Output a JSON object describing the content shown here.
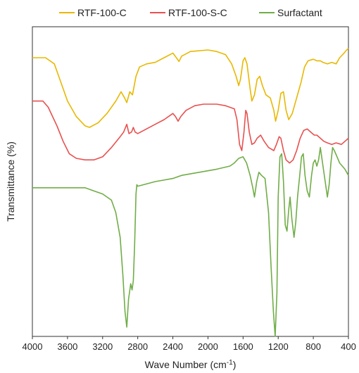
{
  "chart_data": {
    "type": "line",
    "title": "",
    "xlabel": "Wave Number (cm",
    "xlabel_superscript": "-1",
    "xlabel_suffix": ")",
    "ylabel": "Transmittance (%)",
    "xlim": [
      4000,
      400
    ],
    "x_reversed": true,
    "x_ticks": [
      "4000",
      "3600",
      "3200",
      "2800",
      "2400",
      "2000",
      "1600",
      "1200",
      "800",
      "400"
    ],
    "y_ticks": [],
    "grid": false,
    "legend_position": "top",
    "series": [
      {
        "name": "RTF-100-C",
        "color": "#e8b800",
        "points": [
          [
            4000,
            90
          ],
          [
            3850,
            90
          ],
          [
            3750,
            88
          ],
          [
            3650,
            80
          ],
          [
            3600,
            76
          ],
          [
            3500,
            71
          ],
          [
            3400,
            68
          ],
          [
            3350,
            67.5
          ],
          [
            3250,
            69
          ],
          [
            3150,
            72
          ],
          [
            3050,
            76
          ],
          [
            2990,
            79
          ],
          [
            2950,
            77
          ],
          [
            2925,
            75.5
          ],
          [
            2890,
            79
          ],
          [
            2860,
            78
          ],
          [
            2820,
            84
          ],
          [
            2780,
            87
          ],
          [
            2700,
            88
          ],
          [
            2600,
            88.5
          ],
          [
            2500,
            90
          ],
          [
            2400,
            91.5
          ],
          [
            2360,
            90
          ],
          [
            2330,
            88.8
          ],
          [
            2300,
            90.5
          ],
          [
            2200,
            92
          ],
          [
            2000,
            92.5
          ],
          [
            1900,
            92
          ],
          [
            1800,
            91
          ],
          [
            1730,
            88
          ],
          [
            1680,
            84
          ],
          [
            1650,
            81
          ],
          [
            1630,
            83
          ],
          [
            1600,
            89
          ],
          [
            1580,
            90
          ],
          [
            1555,
            88
          ],
          [
            1520,
            80
          ],
          [
            1500,
            76
          ],
          [
            1470,
            78
          ],
          [
            1440,
            83
          ],
          [
            1410,
            84
          ],
          [
            1380,
            81
          ],
          [
            1340,
            78
          ],
          [
            1290,
            77
          ],
          [
            1250,
            73
          ],
          [
            1230,
            69.5
          ],
          [
            1200,
            73
          ],
          [
            1170,
            78.5
          ],
          [
            1140,
            79
          ],
          [
            1110,
            73
          ],
          [
            1080,
            70
          ],
          [
            1040,
            72
          ],
          [
            990,
            77
          ],
          [
            940,
            82
          ],
          [
            900,
            87
          ],
          [
            860,
            89
          ],
          [
            800,
            89.5
          ],
          [
            760,
            89
          ],
          [
            720,
            89
          ],
          [
            690,
            88.5
          ],
          [
            640,
            88
          ],
          [
            590,
            88.5
          ],
          [
            540,
            88
          ],
          [
            500,
            90
          ],
          [
            450,
            91.5
          ],
          [
            420,
            92.5
          ],
          [
            400,
            93
          ]
        ]
      },
      {
        "name": "RTF-100-S-C",
        "color": "#e85050",
        "points": [
          [
            4000,
            76
          ],
          [
            3880,
            76
          ],
          [
            3820,
            74
          ],
          [
            3720,
            68
          ],
          [
            3650,
            63
          ],
          [
            3580,
            59
          ],
          [
            3500,
            57.5
          ],
          [
            3400,
            57
          ],
          [
            3300,
            57
          ],
          [
            3200,
            58
          ],
          [
            3100,
            61
          ],
          [
            3000,
            64.5
          ],
          [
            2960,
            66
          ],
          [
            2925,
            68.5
          ],
          [
            2900,
            65.5
          ],
          [
            2870,
            66
          ],
          [
            2850,
            67.5
          ],
          [
            2830,
            66
          ],
          [
            2800,
            65.5
          ],
          [
            2700,
            67
          ],
          [
            2600,
            68.5
          ],
          [
            2500,
            70
          ],
          [
            2400,
            72
          ],
          [
            2370,
            71
          ],
          [
            2340,
            69.5
          ],
          [
            2310,
            71
          ],
          [
            2250,
            73
          ],
          [
            2150,
            74.5
          ],
          [
            2050,
            75
          ],
          [
            1900,
            75
          ],
          [
            1800,
            74.5
          ],
          [
            1700,
            73.5
          ],
          [
            1670,
            70
          ],
          [
            1640,
            62
          ],
          [
            1615,
            60
          ],
          [
            1590,
            66
          ],
          [
            1570,
            73
          ],
          [
            1555,
            72
          ],
          [
            1530,
            66
          ],
          [
            1500,
            62
          ],
          [
            1470,
            62.5
          ],
          [
            1440,
            64
          ],
          [
            1400,
            65
          ],
          [
            1360,
            63
          ],
          [
            1310,
            61
          ],
          [
            1250,
            60
          ],
          [
            1220,
            62
          ],
          [
            1190,
            64.5
          ],
          [
            1170,
            64
          ],
          [
            1140,
            60
          ],
          [
            1110,
            57
          ],
          [
            1070,
            56
          ],
          [
            1030,
            57
          ],
          [
            990,
            60
          ],
          [
            950,
            64
          ],
          [
            910,
            66.5
          ],
          [
            870,
            67
          ],
          [
            830,
            66
          ],
          [
            790,
            65
          ],
          [
            760,
            65
          ],
          [
            720,
            64
          ],
          [
            680,
            63
          ],
          [
            640,
            62.5
          ],
          [
            590,
            62
          ],
          [
            540,
            62.5
          ],
          [
            480,
            62
          ],
          [
            440,
            63
          ],
          [
            400,
            64
          ]
        ]
      },
      {
        "name": "Surfactant",
        "color": "#70ad47",
        "points": [
          [
            4000,
            48
          ],
          [
            3600,
            48
          ],
          [
            3400,
            48
          ],
          [
            3300,
            47
          ],
          [
            3200,
            46
          ],
          [
            3100,
            44
          ],
          [
            3050,
            40
          ],
          [
            3000,
            32
          ],
          [
            2970,
            20
          ],
          [
            2945,
            8
          ],
          [
            2925,
            3
          ],
          [
            2905,
            12
          ],
          [
            2880,
            17
          ],
          [
            2865,
            15
          ],
          [
            2850,
            18
          ],
          [
            2835,
            30
          ],
          [
            2820,
            46
          ],
          [
            2810,
            49
          ],
          [
            2800,
            48.5
          ],
          [
            2600,
            50
          ],
          [
            2400,
            51
          ],
          [
            2300,
            52
          ],
          [
            2100,
            53
          ],
          [
            1900,
            54
          ],
          [
            1750,
            55
          ],
          [
            1700,
            56
          ],
          [
            1650,
            57.5
          ],
          [
            1600,
            58
          ],
          [
            1560,
            56
          ],
          [
            1520,
            52
          ],
          [
            1490,
            48
          ],
          [
            1470,
            45
          ],
          [
            1445,
            50
          ],
          [
            1420,
            53
          ],
          [
            1390,
            52
          ],
          [
            1350,
            51
          ],
          [
            1310,
            40
          ],
          [
            1280,
            22
          ],
          [
            1255,
            8
          ],
          [
            1235,
            0
          ],
          [
            1215,
            14
          ],
          [
            1200,
            45
          ],
          [
            1180,
            58
          ],
          [
            1160,
            59
          ],
          [
            1140,
            50
          ],
          [
            1120,
            36
          ],
          [
            1100,
            34
          ],
          [
            1080,
            41
          ],
          [
            1065,
            45
          ],
          [
            1045,
            38
          ],
          [
            1020,
            32
          ],
          [
            1000,
            37
          ],
          [
            980,
            45
          ],
          [
            955,
            52
          ],
          [
            935,
            58
          ],
          [
            915,
            59
          ],
          [
            895,
            52
          ],
          [
            870,
            47
          ],
          [
            845,
            45
          ],
          [
            820,
            52
          ],
          [
            800,
            56
          ],
          [
            780,
            57
          ],
          [
            760,
            55
          ],
          [
            740,
            57
          ],
          [
            720,
            61
          ],
          [
            700,
            57
          ],
          [
            680,
            53
          ],
          [
            660,
            49
          ],
          [
            640,
            45
          ],
          [
            620,
            49
          ],
          [
            600,
            56
          ],
          [
            580,
            61
          ],
          [
            560,
            60
          ],
          [
            530,
            58
          ],
          [
            500,
            56
          ],
          [
            470,
            55
          ],
          [
            440,
            54
          ],
          [
            420,
            53
          ],
          [
            400,
            52
          ]
        ]
      }
    ]
  }
}
